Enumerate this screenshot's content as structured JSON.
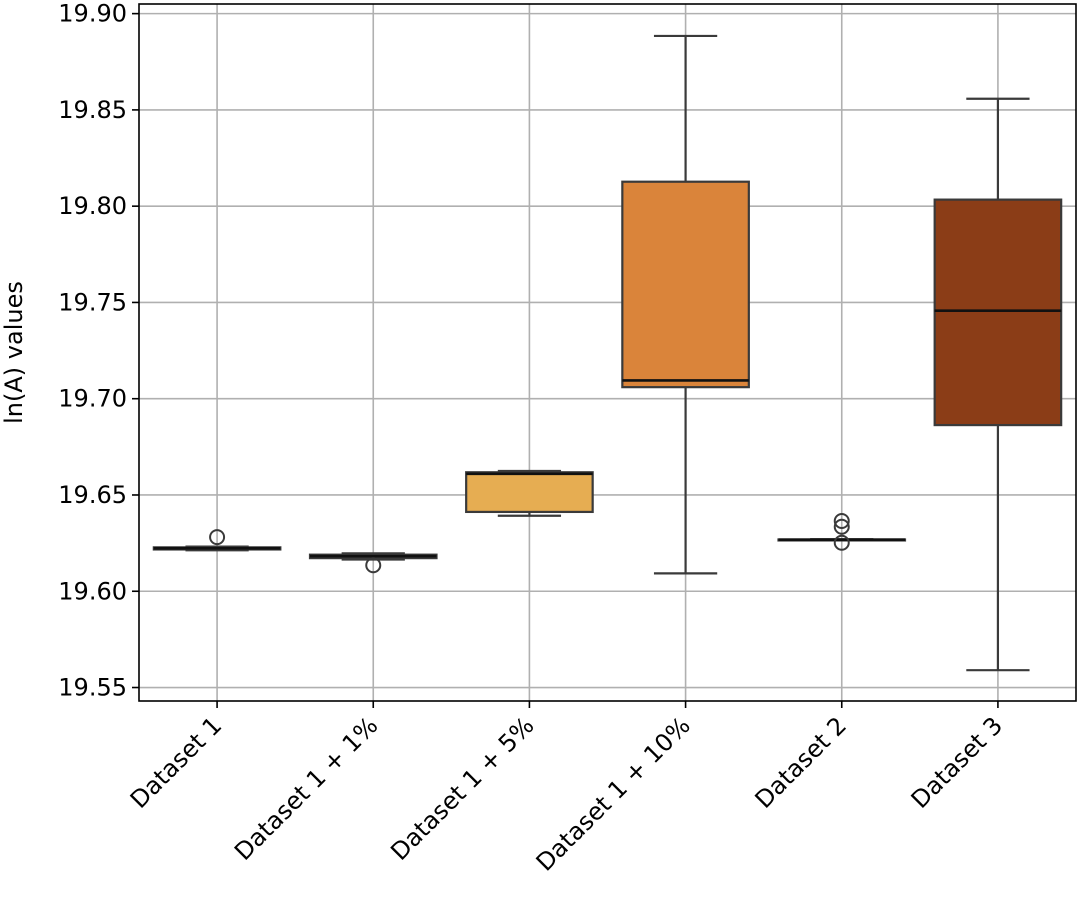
{
  "chart_data": {
    "type": "box",
    "title": "",
    "xlabel": "",
    "ylabel": "ln(A) values",
    "ylim": [
      19.543,
      19.905
    ],
    "yticks": [
      19.55,
      19.6,
      19.65,
      19.7,
      19.75,
      19.8,
      19.85,
      19.9
    ],
    "ytick_labels": [
      "19.55",
      "19.60",
      "19.65",
      "19.70",
      "19.75",
      "19.80",
      "19.85",
      "19.90"
    ],
    "grid": true,
    "categories": [
      "Dataset 1",
      "Dataset 1 + 1%",
      "Dataset 1 + 5%",
      "Dataset 1 + 10%",
      "Dataset 2",
      "Dataset 3"
    ],
    "boxes": [
      {
        "label": "Dataset 1",
        "whisker_low": 19.6213,
        "q1": 19.6217,
        "median": 19.6223,
        "q3": 19.6228,
        "whisker_high": 19.6232,
        "outliers": [
          19.6281
        ],
        "color": "#f7d670"
      },
      {
        "label": "Dataset 1 + 1%",
        "whisker_low": 19.6165,
        "q1": 19.6172,
        "median": 19.6182,
        "q3": 19.619,
        "whisker_high": 19.6197,
        "outliers": [
          19.6135
        ],
        "color": "#f3b54f"
      },
      {
        "label": "Dataset 1 + 5%",
        "whisker_low": 19.6392,
        "q1": 19.6412,
        "median": 19.661,
        "q3": 19.6618,
        "whisker_high": 19.6625,
        "outliers": [],
        "color": "#e6ad52"
      },
      {
        "label": "Dataset 1 + 10%",
        "whisker_low": 19.6093,
        "q1": 19.706,
        "median": 19.7095,
        "q3": 19.8127,
        "whisker_high": 19.8884,
        "outliers": [],
        "color": "#da843a"
      },
      {
        "label": "Dataset 2",
        "whisker_low": 19.6265,
        "q1": 19.6267,
        "median": 19.6268,
        "q3": 19.6269,
        "whisker_high": 19.627,
        "outliers": [
          19.6365,
          19.6335,
          19.6252
        ],
        "color": "#b5541e"
      },
      {
        "label": "Dataset 3",
        "whisker_low": 19.559,
        "q1": 19.6863,
        "median": 19.7457,
        "q3": 19.8034,
        "whisker_high": 19.8558,
        "outliers": [],
        "color": "#8b3d17"
      }
    ]
  }
}
